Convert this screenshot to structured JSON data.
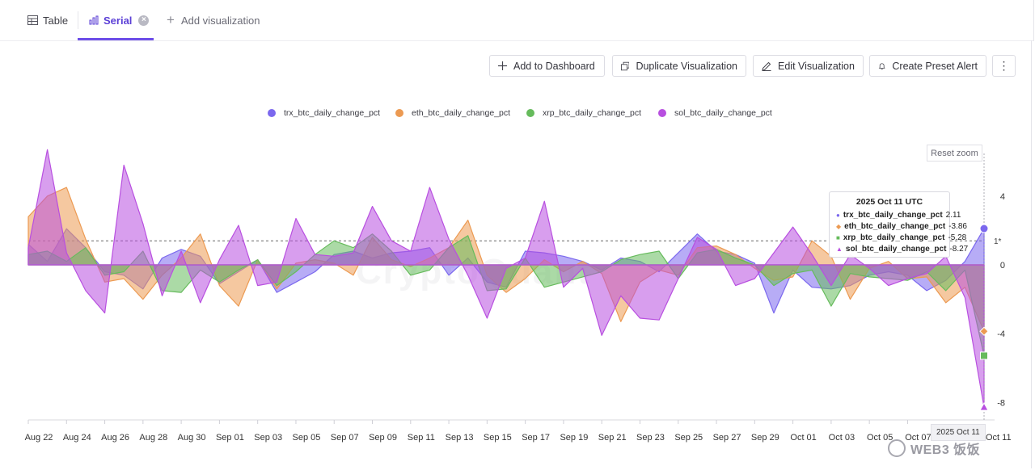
{
  "tabs": {
    "table_label": "Table",
    "serial_label": "Serial",
    "add_label": "Add visualization"
  },
  "toolbar": {
    "add_dashboard": "Add to Dashboard",
    "duplicate": "Duplicate Visualization",
    "edit": "Edit Visualization",
    "alert": "Create Preset Alert",
    "more": "⋮"
  },
  "reset_zoom": "Reset zoom",
  "background_watermark": "CryptoQuant",
  "watermark": "WEB3 饭饭",
  "colors": {
    "accent": "#6d4ee8",
    "trx": "#7b68ee",
    "eth": "#ec9a52",
    "xrp": "#66bb5c",
    "sol": "#b84fe0"
  },
  "tooltip": {
    "title": "2025 Oct 11 UTC",
    "rows": [
      {
        "name": "trx_btc_daily_change_pct",
        "value": "2.11"
      },
      {
        "name": "eth_btc_daily_change_pct",
        "value": "-3.86"
      },
      {
        "name": "xrp_btc_daily_change_pct",
        "value": "-5.28"
      },
      {
        "name": "sol_btc_daily_change_pct",
        "value": "-8.27"
      }
    ]
  },
  "crosshair_date": "2025 Oct 11",
  "chart_data": {
    "type": "area",
    "title": "",
    "xlabel": "",
    "ylabel": "",
    "ylim": [
      -9,
      8.5
    ],
    "y_ticks": [
      "4",
      "0",
      "-4",
      "-8"
    ],
    "y_tick_values": [
      4,
      0,
      -4,
      -8
    ],
    "reference_line": {
      "value": 1.4,
      "label": "1*"
    },
    "x_tick_labels": [
      "Aug 22",
      "Aug 24",
      "Aug 26",
      "Aug 28",
      "Aug 30",
      "Sep 01",
      "Sep 03",
      "Sep 05",
      "Sep 07",
      "Sep 09",
      "Sep 11",
      "Sep 13",
      "Sep 15",
      "Sep 17",
      "Sep 19",
      "Sep 21",
      "Sep 23",
      "Sep 25",
      "Sep 27",
      "Sep 29",
      "Oct 01",
      "Oct 03",
      "Oct 05",
      "Oct 07",
      "Oct 11"
    ],
    "x_tick_indices": [
      0,
      2,
      4,
      6,
      8,
      10,
      12,
      14,
      16,
      18,
      20,
      22,
      24,
      26,
      28,
      30,
      32,
      34,
      36,
      38,
      40,
      42,
      44,
      46,
      50
    ],
    "series": [
      {
        "name": "trx_btc_daily_change_pct",
        "key": "trx",
        "values": [
          1.2,
          0.2,
          2.1,
          1.0,
          -0.4,
          -0.6,
          -1.4,
          0.4,
          0.9,
          0.5,
          -1.1,
          -0.4,
          0.3,
          -1.6,
          -1.0,
          -0.4,
          0.6,
          0.8,
          0.4,
          0.7,
          0.8,
          1.0,
          -0.6,
          0.4,
          -1.0,
          -1.3,
          0.8,
          0.7,
          0.5,
          0.2,
          -0.3,
          0.4,
          0.2,
          -0.4,
          0.7,
          1.8,
          0.8,
          0.6,
          0.1,
          -2.8,
          -0.3,
          -1.3,
          -1.4,
          -1.2,
          -0.6,
          -0.4,
          -0.6,
          -1.5,
          -0.9,
          0.2,
          2.11
        ]
      },
      {
        "name": "eth_btc_daily_change_pct",
        "key": "eth",
        "values": [
          2.8,
          4.0,
          4.5,
          1.5,
          -1.0,
          -0.8,
          -2.0,
          -0.6,
          0.4,
          1.8,
          -1.2,
          -2.4,
          0.3,
          -1.4,
          0.1,
          0.3,
          0.1,
          -0.6,
          1.6,
          0.3,
          -0.1,
          0.4,
          1.0,
          2.6,
          -0.6,
          -1.6,
          -0.8,
          0.3,
          -0.4,
          0.2,
          -0.5,
          -3.3,
          -1.0,
          -0.3,
          -0.6,
          1.0,
          1.1,
          0.6,
          -0.2,
          -0.9,
          -0.7,
          1.4,
          0.5,
          -2.0,
          -0.2,
          0.2,
          -0.8,
          -0.7,
          -2.2,
          -1.3,
          -3.86
        ]
      },
      {
        "name": "xrp_btc_daily_change_pct",
        "key": "xrp",
        "values": [
          0.6,
          0.8,
          0.2,
          1.0,
          -0.6,
          -0.4,
          0.8,
          -1.5,
          -1.6,
          -0.3,
          -1.0,
          -0.3,
          0.3,
          -1.2,
          -0.4,
          0.6,
          1.4,
          1.0,
          1.8,
          0.8,
          -0.6,
          -0.3,
          1.0,
          1.7,
          -1.5,
          -1.4,
          0.4,
          -1.3,
          -1.0,
          -0.7,
          -0.4,
          0.3,
          0.6,
          0.8,
          -0.8,
          0.7,
          0.9,
          0.4,
          0.0,
          -1.2,
          -0.5,
          -0.3,
          -2.4,
          -0.5,
          -0.7,
          -0.8,
          -0.9,
          -0.4,
          -1.5,
          -0.3,
          -5.28
        ]
      },
      {
        "name": "sol_btc_daily_change_pct",
        "key": "sol",
        "values": [
          1.0,
          6.7,
          0.7,
          -1.5,
          -2.8,
          5.8,
          2.4,
          -1.8,
          0.8,
          -2.2,
          0.3,
          2.3,
          -1.2,
          -1.0,
          2.7,
          0.6,
          0.5,
          0.7,
          3.4,
          1.4,
          0.8,
          4.5,
          1.5,
          -0.6,
          -3.1,
          -0.2,
          0.4,
          3.7,
          -1.3,
          -0.2,
          -4.1,
          -1.8,
          -3.1,
          -3.2,
          -0.8,
          1.6,
          0.9,
          -1.2,
          -0.8,
          0.7,
          2.2,
          0.6,
          -1.2,
          0.6,
          -0.2,
          -1.2,
          -0.8,
          -0.5,
          0.5,
          -1.9,
          -8.27
        ]
      }
    ]
  }
}
